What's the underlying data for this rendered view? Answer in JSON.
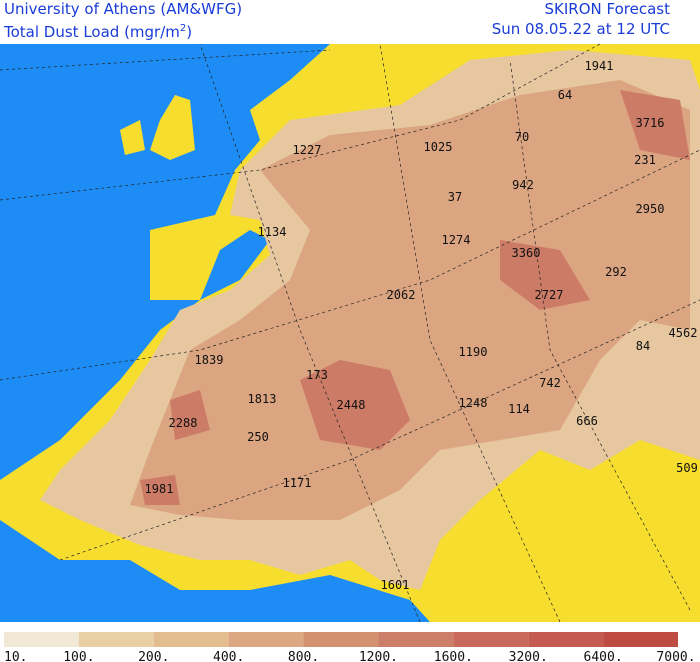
{
  "header": {
    "left_line1": "University of Athens (AM&WFG)",
    "left_line2": "Total Dust Load (mgr/m",
    "left_line2_sup": "2",
    "left_line2_end": ")",
    "right_line1": "SKIRON Forecast",
    "right_line2": "Sun 08.05.22 at 12 UTC"
  },
  "map": {
    "labels": [
      1941,
      64,
      3716,
      70,
      1227,
      1025,
      231,
      942,
      37,
      2950,
      1134,
      1274,
      3360,
      292,
      2062,
      2727,
      4562,
      1839,
      84,
      1190,
      173,
      742,
      1813,
      2448,
      1248,
      114,
      666,
      2288,
      250,
      509,
      1171,
      1981,
      1601
    ]
  },
  "colorbar": {
    "colors": [
      "#f1e8d6",
      "#e8d0a4",
      "#e3bc8f",
      "#dca783",
      "#d49170",
      "#cd7e69",
      "#c96a5d",
      "#c45b50",
      "#be4c43"
    ],
    "labels": [
      "10.",
      "100.",
      "200.",
      "400.",
      "800.",
      "1200.",
      "1600.",
      "3200.",
      "6400.",
      "7000."
    ]
  }
}
